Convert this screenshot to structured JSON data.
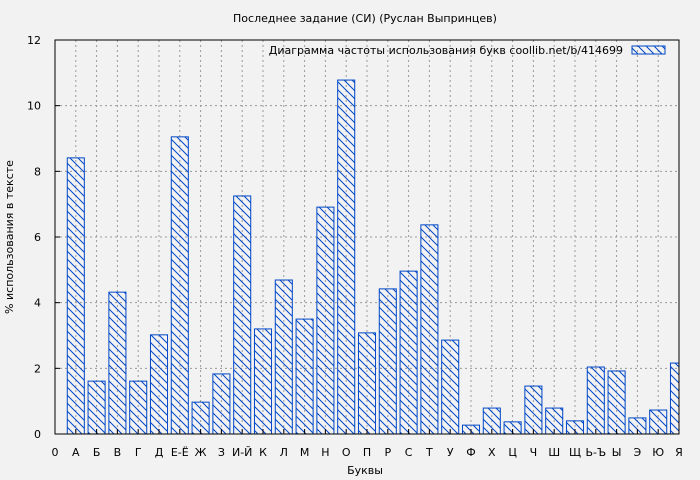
{
  "chart_data": {
    "type": "bar",
    "title": "Последнее задание (СИ) (Руслан Выпринцев)",
    "xlabel": "Буквы",
    "ylabel": "% использования в тексте",
    "legend": {
      "label": "Диаграмма частоты использования букв  coollib.net/b/414699",
      "placement": "top-right"
    },
    "x_tick_labels": [
      "0",
      "А",
      "Б",
      "В",
      "Г",
      "Д",
      "Е-Ё",
      "Ж",
      "З",
      "И-Й",
      "К",
      "Л",
      "М",
      "Н",
      "О",
      "П",
      "Р",
      "С",
      "Т",
      "У",
      "Ф",
      "Х",
      "Ц",
      "Ч",
      "Ш",
      "Щ",
      "Ь-Ъ",
      "Ы",
      "Э",
      "Ю",
      "Я"
    ],
    "categories": [
      "А",
      "Б",
      "В",
      "Г",
      "Д",
      "Е-Ё",
      "Ж",
      "З",
      "И-Й",
      "К",
      "Л",
      "М",
      "Н",
      "О",
      "П",
      "Р",
      "С",
      "Т",
      "У",
      "Ф",
      "Х",
      "Ц",
      "Ч",
      "Ш",
      "Щ",
      "Ь-Ъ",
      "Ы",
      "Э",
      "Ю",
      "Я"
    ],
    "values": [
      8.41,
      1.61,
      4.32,
      1.61,
      3.02,
      9.05,
      0.97,
      1.83,
      7.25,
      3.2,
      4.69,
      3.5,
      6.91,
      10.78,
      3.08,
      4.42,
      4.96,
      6.37,
      2.86,
      0.27,
      0.79,
      0.37,
      1.46,
      0.79,
      0.4,
      2.04,
      1.92,
      0.49,
      0.73,
      2.16
    ],
    "xlim": [
      0,
      30
    ],
    "ylim": [
      0,
      12
    ],
    "y_ticks": [
      0,
      2,
      4,
      6,
      8,
      10,
      12
    ],
    "grid": true,
    "bar_color": "#0047c8",
    "fill": "diagonal-hatch"
  }
}
